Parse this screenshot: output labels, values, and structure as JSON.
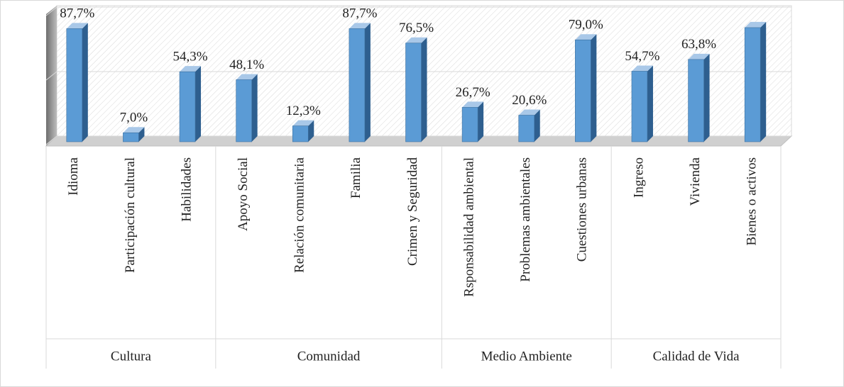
{
  "chart_data": {
    "type": "bar3d",
    "groups": [
      {
        "name": "Cultura",
        "categories": [
          "Idioma",
          "Participación cultural",
          "Habilidades"
        ]
      },
      {
        "name": "Comunidad",
        "categories": [
          "Apoyo Social",
          "Relación comunitaria",
          "Familia",
          "Crimen y Seguridad"
        ]
      },
      {
        "name": "Medio Ambiente",
        "categories": [
          "Rsponsabilidad ambiental",
          "Problemas ambientales",
          "Cuestiones urbanas"
        ]
      },
      {
        "name": "Calidad de Vida",
        "categories": [
          "Ingreso",
          "Vivienda",
          "Bienes o activos"
        ]
      }
    ],
    "values": [
      87.7,
      7.0,
      54.3,
      48.1,
      12.3,
      87.7,
      76.5,
      26.7,
      20.6,
      79.0,
      54.7,
      63.8,
      88.5
    ],
    "value_labels": [
      "87,7%",
      "7,0%",
      "54,3%",
      "48,1%",
      "12,3%",
      "87,7%",
      "76,5%",
      "26,7%",
      "20,6%",
      "79,0%",
      "54,7%",
      "63,8%",
      null
    ],
    "color": "#5b9bd5",
    "ylim": [
      0,
      100
    ],
    "yticks": [
      0,
      50,
      100
    ],
    "grid": true
  }
}
